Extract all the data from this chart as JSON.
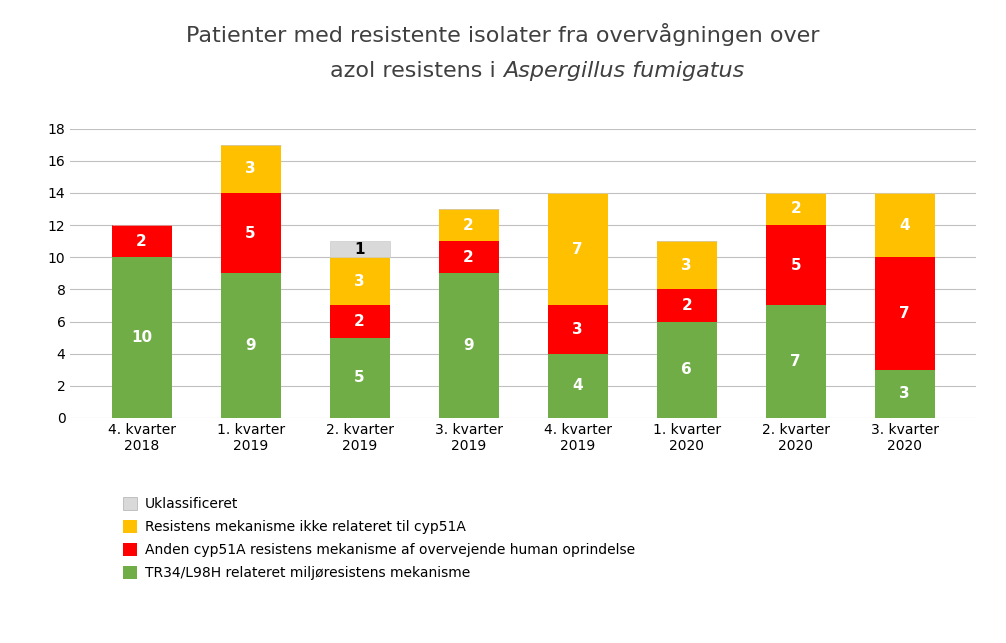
{
  "categories": [
    "4. kvarter\n2018",
    "1. kvarter\n2019",
    "2. kvarter\n2019",
    "3. kvarter\n2019",
    "4. kvarter\n2019",
    "1. kvarter\n2020",
    "2. kvarter\n2020",
    "3. kvarter\n2020"
  ],
  "green": [
    10,
    9,
    5,
    9,
    4,
    6,
    7,
    3
  ],
  "red": [
    2,
    5,
    2,
    2,
    3,
    2,
    5,
    7
  ],
  "yellow": [
    0,
    3,
    3,
    2,
    7,
    3,
    2,
    4
  ],
  "grey": [
    0,
    0,
    1,
    0,
    0,
    0,
    0,
    0
  ],
  "green_color": "#70ad47",
  "red_color": "#ff0000",
  "yellow_color": "#ffc000",
  "grey_color": "#d9d9d9",
  "title_line1": "Patienter med resistente isolater fra overvågningen over",
  "title_line2_normal": "azol resistens i ",
  "title_line2_italic": "Aspergillus fumigatus",
  "ylim": [
    0,
    18
  ],
  "yticks": [
    0,
    2,
    4,
    6,
    8,
    10,
    12,
    14,
    16,
    18
  ],
  "legend_labels": [
    "Uklassificeret",
    "Resistens mekanisme ikke relateret til cyp51A",
    "Anden cyp51A resistens mekanisme af overvejende human oprindelse",
    "TR34/L98H relateret miljøresistens mekanisme"
  ],
  "background_color": "#ffffff",
  "label_fontsize": 10,
  "title_fontsize": 16,
  "bar_width": 0.55
}
